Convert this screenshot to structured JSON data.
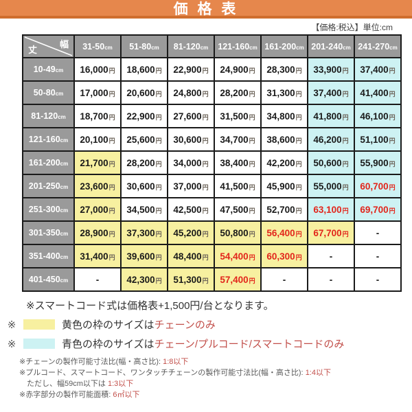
{
  "banner": {
    "title": "価 格 表"
  },
  "meta": {
    "note": "【価格:税込】単位:cm"
  },
  "colors": {
    "orange": "#e6874c",
    "orange_dark": "#cf6e2e",
    "header_gray": "#9a9a9a",
    "yellow": "#f7f0a0",
    "cyan": "#cdf2f3",
    "white": "#ffffff",
    "red_price": "#e2251b",
    "red_note": "#c24f4a"
  },
  "table": {
    "corner": {
      "width_label": "幅",
      "height_label": "丈"
    },
    "unit": "cm",
    "currency": "円",
    "columns": [
      "31-50",
      "51-80",
      "81-120",
      "121-160",
      "161-200",
      "201-240",
      "241-270"
    ],
    "rows": [
      {
        "header": "10-49",
        "cells": [
          {
            "v": "16,000",
            "bg": "w"
          },
          {
            "v": "18,600",
            "bg": "w"
          },
          {
            "v": "22,900",
            "bg": "w"
          },
          {
            "v": "24,900",
            "bg": "w"
          },
          {
            "v": "28,300",
            "bg": "w"
          },
          {
            "v": "33,900",
            "bg": "c"
          },
          {
            "v": "37,400",
            "bg": "c"
          }
        ]
      },
      {
        "header": "50-80",
        "cells": [
          {
            "v": "17,000",
            "bg": "w"
          },
          {
            "v": "20,600",
            "bg": "w"
          },
          {
            "v": "24,800",
            "bg": "w"
          },
          {
            "v": "28,200",
            "bg": "w"
          },
          {
            "v": "31,300",
            "bg": "w"
          },
          {
            "v": "37,400",
            "bg": "c"
          },
          {
            "v": "41,400",
            "bg": "c"
          }
        ]
      },
      {
        "header": "81-120",
        "cells": [
          {
            "v": "18,700",
            "bg": "w"
          },
          {
            "v": "22,900",
            "bg": "w"
          },
          {
            "v": "27,600",
            "bg": "w"
          },
          {
            "v": "31,500",
            "bg": "w"
          },
          {
            "v": "34,800",
            "bg": "w"
          },
          {
            "v": "41,800",
            "bg": "c"
          },
          {
            "v": "46,100",
            "bg": "c"
          }
        ]
      },
      {
        "header": "121-160",
        "cells": [
          {
            "v": "20,100",
            "bg": "w"
          },
          {
            "v": "25,600",
            "bg": "w"
          },
          {
            "v": "30,600",
            "bg": "w"
          },
          {
            "v": "34,700",
            "bg": "w"
          },
          {
            "v": "38,600",
            "bg": "w"
          },
          {
            "v": "46,200",
            "bg": "c"
          },
          {
            "v": "51,100",
            "bg": "c"
          }
        ]
      },
      {
        "header": "161-200",
        "cells": [
          {
            "v": "21,700",
            "bg": "y"
          },
          {
            "v": "28,200",
            "bg": "w"
          },
          {
            "v": "34,000",
            "bg": "w"
          },
          {
            "v": "38,400",
            "bg": "w"
          },
          {
            "v": "42,200",
            "bg": "w"
          },
          {
            "v": "50,600",
            "bg": "c"
          },
          {
            "v": "55,900",
            "bg": "c"
          }
        ]
      },
      {
        "header": "201-250",
        "cells": [
          {
            "v": "23,600",
            "bg": "y"
          },
          {
            "v": "30,600",
            "bg": "w"
          },
          {
            "v": "37,000",
            "bg": "w"
          },
          {
            "v": "41,500",
            "bg": "w"
          },
          {
            "v": "45,900",
            "bg": "w"
          },
          {
            "v": "55,000",
            "bg": "c"
          },
          {
            "v": "60,700",
            "bg": "c",
            "red": true
          }
        ]
      },
      {
        "header": "251-300",
        "cells": [
          {
            "v": "27,000",
            "bg": "y"
          },
          {
            "v": "34,500",
            "bg": "w"
          },
          {
            "v": "42,500",
            "bg": "w"
          },
          {
            "v": "47,500",
            "bg": "w"
          },
          {
            "v": "52,700",
            "bg": "w"
          },
          {
            "v": "63,100",
            "bg": "c",
            "red": true
          },
          {
            "v": "69,700",
            "bg": "c",
            "red": true
          }
        ]
      },
      {
        "header": "301-350",
        "cells": [
          {
            "v": "28,900",
            "bg": "y"
          },
          {
            "v": "37,300",
            "bg": "y"
          },
          {
            "v": "45,200",
            "bg": "y"
          },
          {
            "v": "50,800",
            "bg": "y"
          },
          {
            "v": "56,400",
            "bg": "y",
            "red": true
          },
          {
            "v": "67,700",
            "bg": "y",
            "red": true
          },
          {
            "v": "-",
            "bg": "w"
          }
        ]
      },
      {
        "header": "351-400",
        "cells": [
          {
            "v": "31,400",
            "bg": "y"
          },
          {
            "v": "39,600",
            "bg": "y"
          },
          {
            "v": "48,400",
            "bg": "y"
          },
          {
            "v": "54,400",
            "bg": "y",
            "red": true
          },
          {
            "v": "60,300",
            "bg": "y",
            "red": true
          },
          {
            "v": "-",
            "bg": "w"
          },
          {
            "v": "-",
            "bg": "w"
          }
        ]
      },
      {
        "header": "401-450",
        "cells": [
          {
            "v": "-",
            "bg": "w"
          },
          {
            "v": "42,300",
            "bg": "y"
          },
          {
            "v": "51,300",
            "bg": "y"
          },
          {
            "v": "57,400",
            "bg": "y",
            "red": true
          },
          {
            "v": "-",
            "bg": "w"
          },
          {
            "v": "-",
            "bg": "w"
          },
          {
            "v": "-",
            "bg": "w"
          }
        ]
      }
    ]
  },
  "legend": {
    "note_top": "※スマートコード式は価格表+1,500円/台となります。",
    "items": [
      {
        "mark": "※",
        "swatch": "yellow",
        "text": "黄色の枠のサイズは",
        "red_text": "チェーンのみ"
      },
      {
        "mark": "※",
        "swatch": "cyan",
        "text": "青色の枠のサイズは",
        "red_text": "チェーン/プルコード/スマートコードのみ"
      }
    ]
  },
  "fine_notes": [
    {
      "text": "※チェーンの製作可能寸法比(幅・高さ比): ",
      "red": "1:8以下",
      "indent": false
    },
    {
      "text": "※プルコード、スマートコード、ワンタッチチェーンの製作可能寸法比(幅・高さ比): ",
      "red": "1:4以下",
      "indent": false
    },
    {
      "text": "ただし、幅59cm以下は ",
      "red": "1:3以下",
      "indent": true
    },
    {
      "text": "※赤字部分の製作可能面積:  ",
      "red": "6㎡以下",
      "indent": false
    }
  ]
}
